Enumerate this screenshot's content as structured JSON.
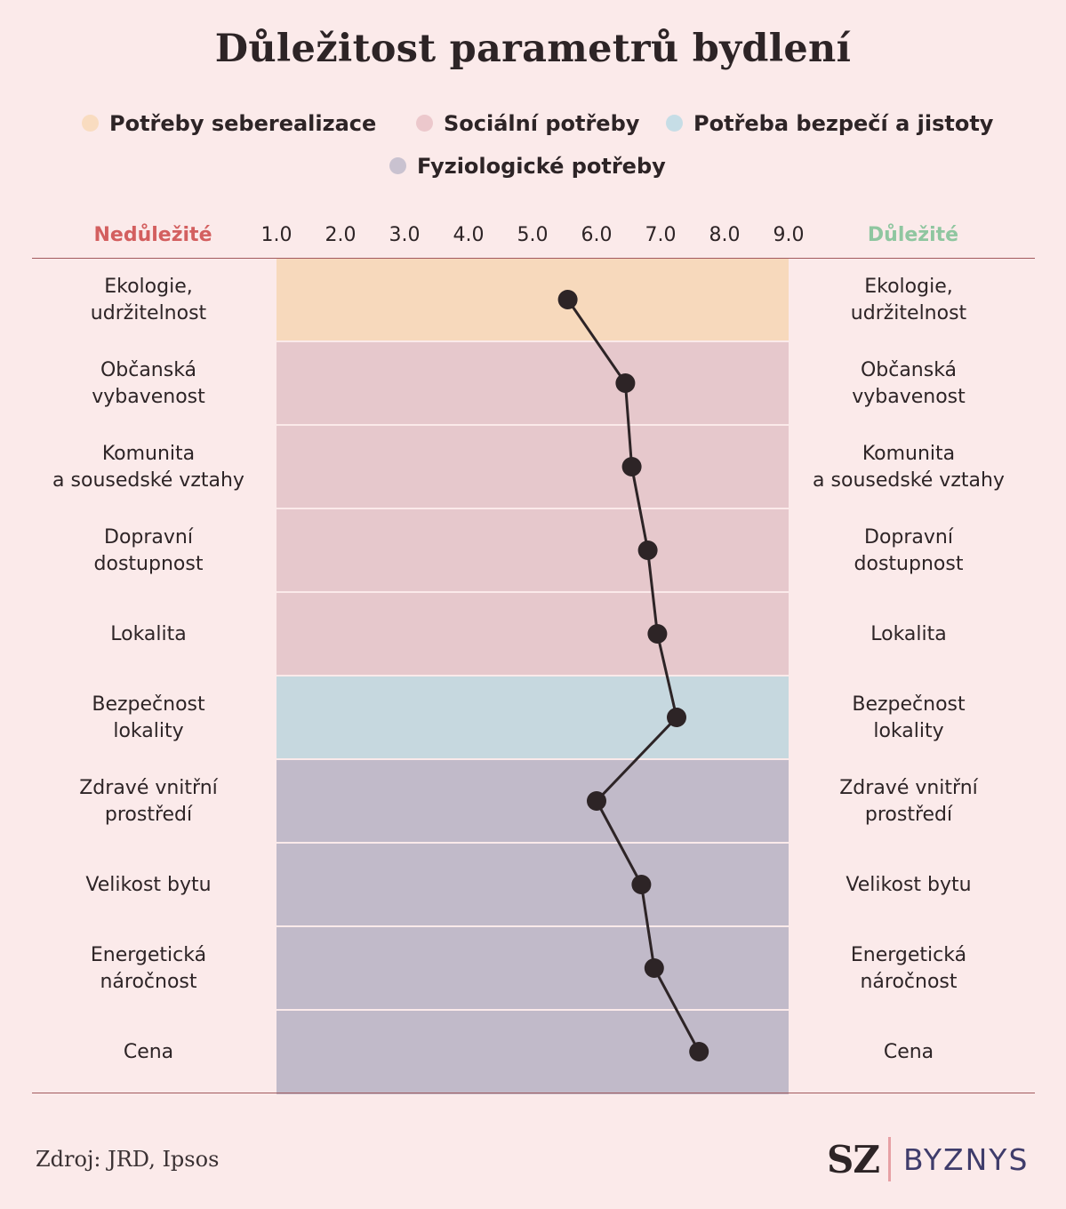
{
  "title": "Důležitost parametrů bydlení",
  "legend": [
    {
      "label": "Potřeby seberealizace",
      "color": "#f9dcc0"
    },
    {
      "label": "Sociální potřeby",
      "color": "#ecc8cc"
    },
    {
      "label": "Potřeba bezpečí a jistoty",
      "color": "#c6dde6"
    },
    {
      "label": "Fyziologické potřeby",
      "color": "#c9c2d0"
    }
  ],
  "axis": {
    "left_label": "Nedůležité",
    "right_label": "Důležité",
    "left_color": "#d35f5f",
    "right_color": "#8fc6a0"
  },
  "footer": {
    "source": "Zdroj: JRD, Ipsos",
    "logo_sz": "SZ",
    "logo_byznys": "BYZNYS"
  },
  "chart_data": {
    "type": "line",
    "orientation": "horizontal",
    "xlim": [
      1.0,
      9.0
    ],
    "ticks": [
      "1.0",
      "2.0",
      "3.0",
      "4.0",
      "5.0",
      "6.0",
      "7.0",
      "8.0",
      "9.0"
    ],
    "grid": false,
    "band_colors": {
      "Potřeby seberealizace": "#f7d9bc",
      "Sociální potřeby": "#e6c8cc",
      "Potřeba bezpečí a jistoty": "#c6d8df",
      "Fyziologické potřeby": "#c1bac9"
    },
    "line_color": "#2d2426",
    "categories": [
      "Ekologie,\nudržitelnost",
      "Občanská\nvybavenost",
      "Komunita\na sousedské vztahy",
      "Dopravní\ndostupnost",
      "Lokalita",
      "Bezpečnost\nlokality",
      "Zdravé vnitřní\nprostředí",
      "Velikost bytu",
      "Energetická\nnáročnost",
      "Cena"
    ],
    "groups": [
      "Potřeby seberealizace",
      "Sociální potřeby",
      "Sociální potřeby",
      "Sociální potřeby",
      "Sociální potřeby",
      "Potřeba bezpečí a jistoty",
      "Fyziologické potřeby",
      "Fyziologické potřeby",
      "Fyziologické potřeby",
      "Fyziologické potřeby"
    ],
    "values": [
      5.55,
      6.45,
      6.55,
      6.8,
      6.95,
      7.25,
      6.0,
      6.7,
      6.9,
      7.6
    ]
  }
}
